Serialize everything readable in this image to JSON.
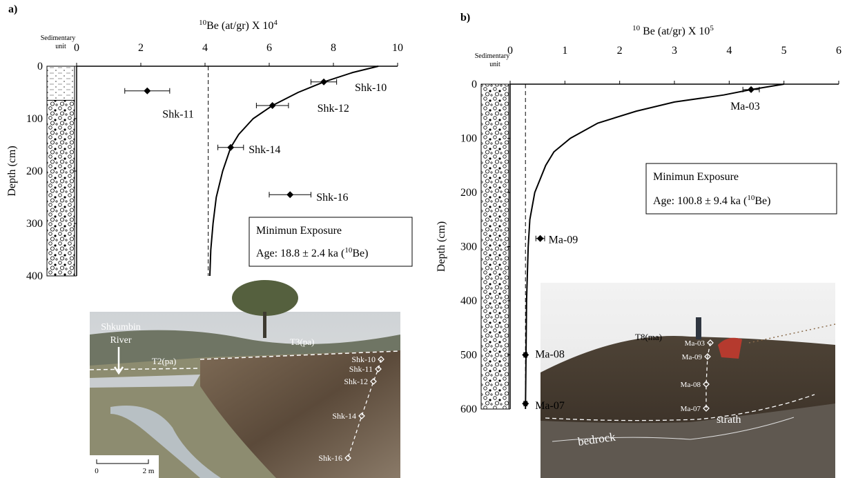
{
  "chart_data": [
    {
      "type": "scatter",
      "panel": "a)",
      "title_pre": "10",
      "title": "Be (at/gr) X 10",
      "title_exp": "4",
      "y_label": "Depth (cm)",
      "unit_label": [
        "Sedimentary",
        "unit"
      ],
      "xlim": [
        0,
        10
      ],
      "xticks": [
        0,
        2,
        4,
        6,
        8,
        10
      ],
      "ylim": [
        0,
        400
      ],
      "yticks": [
        0,
        100,
        200,
        300,
        400
      ],
      "y_inverted": true,
      "labels": [
        "Shk-10",
        "Shk-11",
        "Shk-12",
        "Shk-14",
        "Shk-16"
      ],
      "x": [
        7.7,
        2.2,
        6.1,
        4.8,
        6.65
      ],
      "y": [
        30,
        47,
        75,
        155,
        245
      ],
      "xerr": [
        0.4,
        0.7,
        0.5,
        0.4,
        0.65
      ],
      "color": "#000000",
      "reference_x": 4.1,
      "unit_boundary": 65,
      "curve": {
        "x": [
          9.4,
          8.6,
          7.7,
          6.9,
          6.1,
          5.5,
          5.05,
          4.8,
          4.55,
          4.35,
          4.25,
          4.18,
          4.15
        ],
        "y": [
          0,
          12,
          30,
          50,
          75,
          100,
          130,
          155,
          200,
          250,
          300,
          350,
          400
        ]
      },
      "box": {
        "line1": "Minimun Exposure",
        "age": "Age: 18.8 ± 2.4 ka (",
        "age_sup": "10",
        "age_end": "Be)"
      }
    },
    {
      "type": "scatter",
      "panel": "b)",
      "title_pre": "10",
      "title": " Be (at/gr) X 10",
      "title_exp": "5",
      "y_label": "Depth (cm)",
      "unit_label": [
        "Sedimentary",
        "unit"
      ],
      "xlim": [
        0,
        6
      ],
      "xticks": [
        0,
        1,
        2,
        3,
        4,
        5,
        6
      ],
      "ylim": [
        0,
        600
      ],
      "yticks": [
        0,
        100,
        200,
        300,
        400,
        500,
        600
      ],
      "y_inverted": true,
      "labels": [
        "Ma-03",
        "Ma-09",
        "Ma-08",
        "Ma-07"
      ],
      "x": [
        4.4,
        0.55,
        0.28,
        0.28
      ],
      "y": [
        10,
        285,
        500,
        590
      ],
      "xerr": [
        0.15,
        0.08,
        0.03,
        0.03
      ],
      "color": "#000000",
      "reference_x": 0.28,
      "unit_boundary": null,
      "curve": {
        "x": [
          5.0,
          4.4,
          3.9,
          3.0,
          2.3,
          1.6,
          1.1,
          0.8,
          0.65,
          0.45,
          0.36,
          0.33,
          0.3,
          0.29,
          0.28
        ],
        "y": [
          0,
          10,
          20,
          33,
          50,
          72,
          100,
          125,
          150,
          200,
          250,
          300,
          400,
          500,
          600
        ]
      },
      "box": {
        "line1": "Minimun Exposure",
        "age": "Age: 100.8 ± 9.4 ka (",
        "age_sup": "10",
        "age_end": "Be)"
      }
    }
  ],
  "photo_a": {
    "river": [
      "Shkumbin",
      "River"
    ],
    "terraces": [
      "T2(pa)",
      "T3(pa)"
    ],
    "samples": [
      "Shk-10",
      "Shk-11",
      "Shk-12",
      "Shk-14",
      "Shk-16"
    ],
    "scale": [
      "0",
      "2 m"
    ]
  },
  "photo_b": {
    "terrace": "T8(ma)",
    "samples": [
      "Ma-03",
      "Ma-09",
      "Ma-08",
      "Ma-07"
    ],
    "strath": "strath",
    "bedrock": "bedrock"
  }
}
